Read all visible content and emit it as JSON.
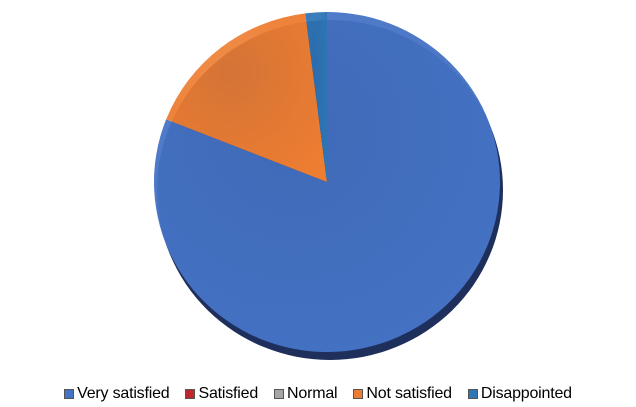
{
  "chart_data": {
    "type": "pie",
    "title": "",
    "categories": [
      "Very satisfied",
      "Satisfied",
      "Normal",
      "Not satisfied",
      "Disappointed"
    ],
    "values": [
      81,
      0,
      0,
      17,
      2
    ],
    "value_unit": "percent",
    "colors": [
      "#4472C4",
      "#C0262C",
      "#A5A5A5",
      "#ED7D31",
      "#2E75B6"
    ],
    "legend_position": "bottom",
    "start_angle_note": "first slice begins at 12 o'clock and runs clockwise"
  }
}
